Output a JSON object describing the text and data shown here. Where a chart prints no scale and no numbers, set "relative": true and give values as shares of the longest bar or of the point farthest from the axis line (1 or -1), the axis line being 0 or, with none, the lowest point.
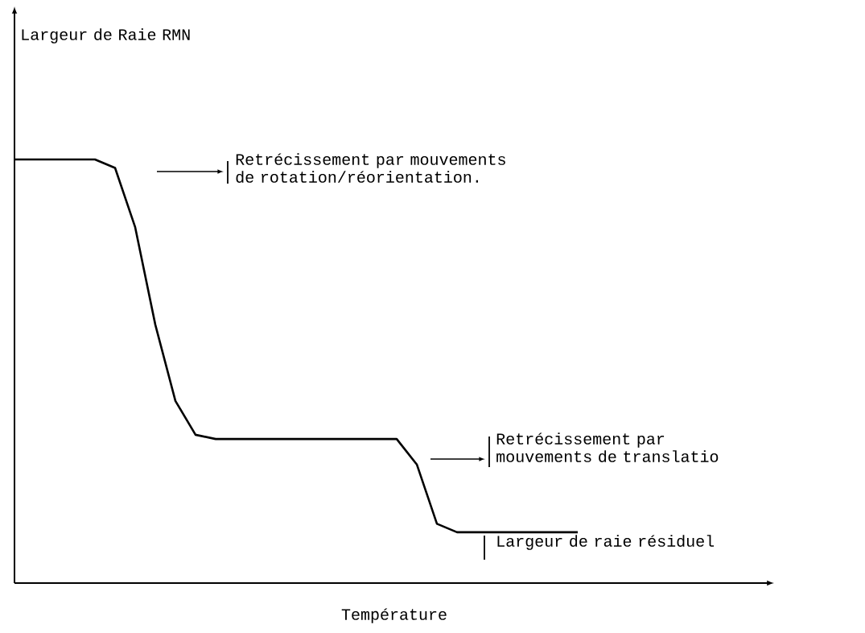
{
  "chart_data": {
    "type": "line",
    "relative": true,
    "color": "#000000",
    "xlabel": "Température",
    "categories": [
      null,
      null,
      null,
      null,
      null,
      null,
      null,
      null,
      null,
      null,
      null,
      null,
      null,
      null,
      null,
      null,
      null,
      null,
      null,
      null,
      null,
      null,
      null,
      null,
      null,
      null,
      null,
      null,
      null
    ],
    "values": [
      1.0,
      1.0,
      1.0,
      1.0,
      1.0,
      0.98,
      0.84,
      0.61,
      0.43,
      0.35,
      0.34,
      0.34,
      0.34,
      0.34,
      0.34,
      0.34,
      0.34,
      0.34,
      0.34,
      0.34,
      0.28,
      0.14,
      0.12,
      0.12,
      0.12,
      0.12,
      0.12,
      0.12,
      0.12
    ],
    "annotations": [
      "Retrécissement par mouvements de rotation/réorientation.",
      "Retrécissement par mouvements de translatio",
      "Largeur de raie résiduel",
      "Largeur de Raie RMN"
    ]
  }
}
